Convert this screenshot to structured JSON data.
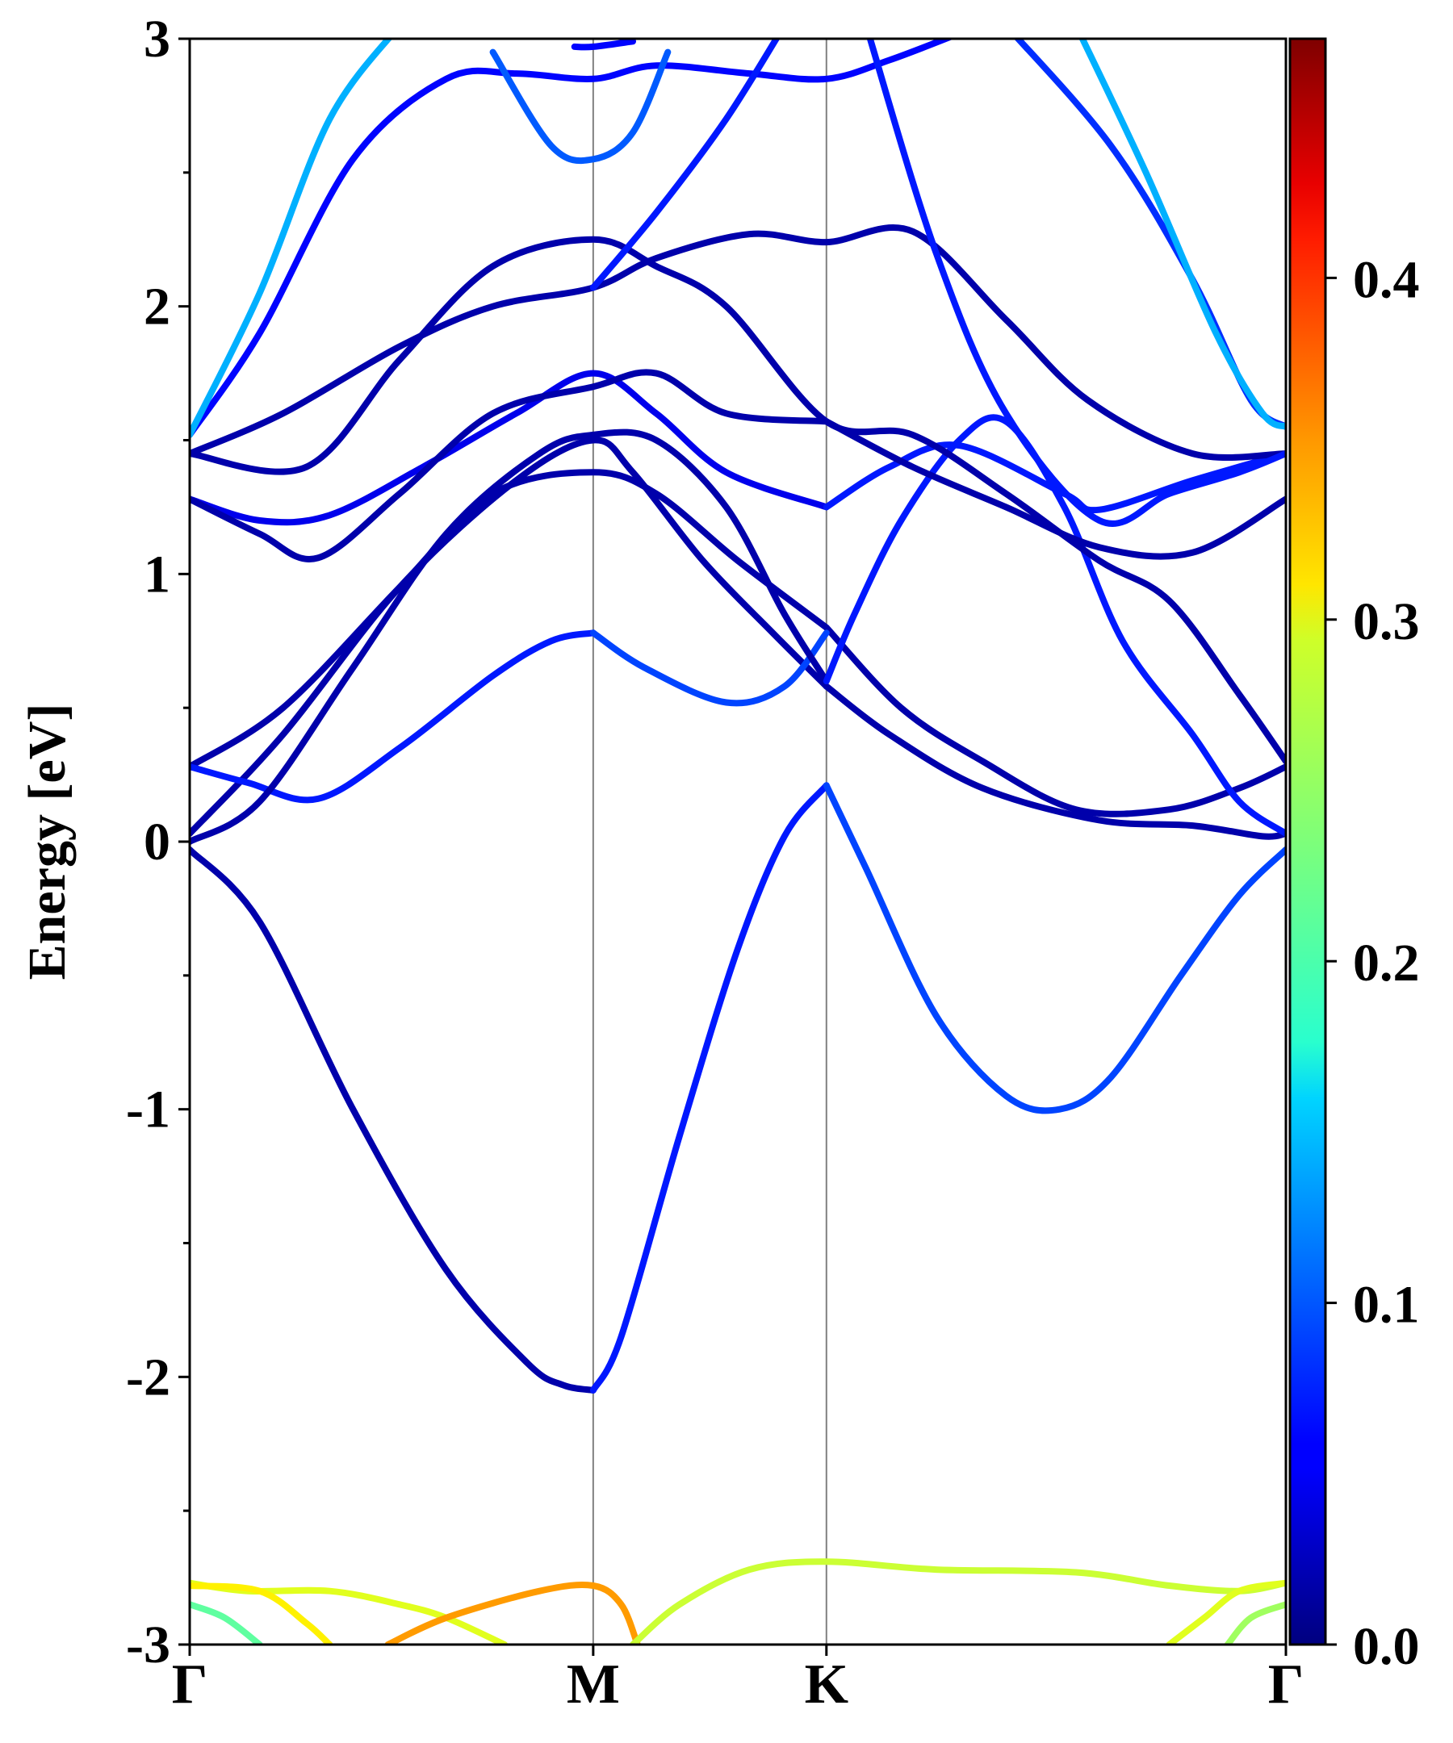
{
  "chart_data": {
    "type": "line",
    "title": "",
    "xlabel": "",
    "ylabel": "Energy [eV]",
    "ylim": [
      -3,
      3
    ],
    "xlim": [
      0,
      4.7
    ],
    "y_ticks": [
      "-3",
      "-2",
      "-1",
      "0",
      "1",
      "2",
      "3"
    ],
    "x_ticks": [
      {
        "label": "Γ",
        "value": 0
      },
      {
        "label": "M",
        "value": 1.73
      },
      {
        "label": "K",
        "value": 2.73
      },
      {
        "label": "Γ",
        "value": 4.7
      }
    ],
    "colorbar": {
      "colormap": "jet",
      "range": [
        0,
        0.47
      ],
      "ticks": [
        "0.0",
        "0.1",
        "0.2",
        "0.3",
        "0.4"
      ]
    },
    "series": [
      {
        "color_value": 0.02,
        "points": [
          [
            0,
            -0.03
          ],
          [
            0.3,
            -0.3
          ],
          [
            0.7,
            -1.0
          ],
          [
            1.1,
            -1.6
          ],
          [
            1.45,
            -1.95
          ],
          [
            1.6,
            -2.03
          ],
          [
            1.73,
            -2.05
          ]
        ]
      },
      {
        "color_value": 0.07,
        "points": [
          [
            1.73,
            -2.05
          ],
          [
            1.85,
            -1.85
          ],
          [
            2.1,
            -1.1
          ],
          [
            2.35,
            -0.4
          ],
          [
            2.55,
            0.02
          ],
          [
            2.73,
            0.21
          ]
        ]
      },
      {
        "color_value": 0.09,
        "points": [
          [
            2.73,
            0.21
          ],
          [
            2.9,
            -0.1
          ],
          [
            3.2,
            -0.65
          ],
          [
            3.5,
            -0.95
          ],
          [
            3.73,
            -1.0
          ],
          [
            3.95,
            -0.88
          ],
          [
            4.25,
            -0.5
          ],
          [
            4.5,
            -0.2
          ],
          [
            4.7,
            -0.03
          ]
        ]
      },
      {
        "color_value": 0.02,
        "points": [
          [
            0,
            0.03
          ],
          [
            0.4,
            0.4
          ],
          [
            0.9,
            0.95
          ],
          [
            1.4,
            1.35
          ],
          [
            1.73,
            1.5
          ],
          [
            1.9,
            1.38
          ],
          [
            2.2,
            1.05
          ],
          [
            2.5,
            0.78
          ],
          [
            2.73,
            0.58
          ]
        ]
      },
      {
        "color_value": 0.02,
        "points": [
          [
            2.73,
            0.58
          ],
          [
            3.0,
            0.4
          ],
          [
            3.4,
            0.2
          ],
          [
            3.9,
            0.08
          ],
          [
            4.3,
            0.06
          ],
          [
            4.6,
            0.02
          ],
          [
            4.7,
            0.03
          ]
        ]
      },
      {
        "color_value": 0.02,
        "points": [
          [
            0,
            0.28
          ],
          [
            0.4,
            0.5
          ],
          [
            0.9,
            0.95
          ],
          [
            1.3,
            1.3
          ],
          [
            1.73,
            1.38
          ],
          [
            2.0,
            1.3
          ],
          [
            2.35,
            1.05
          ],
          [
            2.73,
            0.8
          ]
        ]
      },
      {
        "color_value": 0.02,
        "points": [
          [
            2.73,
            0.8
          ],
          [
            3.05,
            0.5
          ],
          [
            3.4,
            0.3
          ],
          [
            3.8,
            0.12
          ],
          [
            4.2,
            0.12
          ],
          [
            4.5,
            0.2
          ],
          [
            4.7,
            0.28
          ]
        ]
      },
      {
        "color_value": 0.07,
        "points": [
          [
            0,
            0.28
          ],
          [
            0.25,
            0.22
          ],
          [
            0.55,
            0.16
          ],
          [
            0.9,
            0.35
          ],
          [
            1.3,
            0.62
          ],
          [
            1.55,
            0.75
          ],
          [
            1.73,
            0.78
          ]
        ]
      },
      {
        "color_value": 0.09,
        "points": [
          [
            1.73,
            0.78
          ],
          [
            1.95,
            0.65
          ],
          [
            2.3,
            0.52
          ],
          [
            2.55,
            0.58
          ],
          [
            2.73,
            0.78
          ]
        ]
      },
      {
        "color_value": 0.02,
        "points": [
          [
            0,
            0.0
          ],
          [
            0.3,
            0.15
          ],
          [
            0.7,
            0.65
          ],
          [
            1.1,
            1.15
          ],
          [
            1.5,
            1.45
          ],
          [
            1.73,
            1.52
          ],
          [
            2.0,
            1.5
          ],
          [
            2.3,
            1.25
          ],
          [
            2.55,
            0.85
          ],
          [
            2.73,
            0.6
          ]
        ]
      },
      {
        "color_value": 0.07,
        "points": [
          [
            2.73,
            0.6
          ],
          [
            2.85,
            0.85
          ],
          [
            3.05,
            1.2
          ],
          [
            3.3,
            1.5
          ],
          [
            3.5,
            1.57
          ],
          [
            3.75,
            1.25
          ],
          [
            4.0,
            0.75
          ],
          [
            4.3,
            0.4
          ],
          [
            4.5,
            0.15
          ],
          [
            4.7,
            0.03
          ]
        ]
      },
      {
        "color_value": 0.05,
        "points": [
          [
            0,
            1.28
          ],
          [
            0.3,
            1.2
          ],
          [
            0.6,
            1.22
          ],
          [
            1.0,
            1.4
          ],
          [
            1.4,
            1.6
          ],
          [
            1.73,
            1.75
          ],
          [
            2.0,
            1.6
          ],
          [
            2.3,
            1.38
          ],
          [
            2.73,
            1.25
          ]
        ]
      },
      {
        "color_value": 0.07,
        "points": [
          [
            2.73,
            1.25
          ],
          [
            3.0,
            1.4
          ],
          [
            3.3,
            1.48
          ],
          [
            3.75,
            1.3
          ],
          [
            3.9,
            1.24
          ],
          [
            4.3,
            1.35
          ],
          [
            4.7,
            1.45
          ]
        ]
      },
      {
        "color_value": 0.02,
        "points": [
          [
            0,
            1.28
          ],
          [
            0.3,
            1.15
          ],
          [
            0.55,
            1.06
          ],
          [
            0.9,
            1.3
          ],
          [
            1.3,
            1.6
          ],
          [
            1.73,
            1.7
          ],
          [
            2.0,
            1.75
          ],
          [
            2.3,
            1.6
          ],
          [
            2.73,
            1.57
          ]
        ]
      },
      {
        "color_value": 0.02,
        "points": [
          [
            2.73,
            1.57
          ],
          [
            3.1,
            1.4
          ],
          [
            3.5,
            1.25
          ],
          [
            3.9,
            1.1
          ],
          [
            4.3,
            1.08
          ],
          [
            4.7,
            1.28
          ]
        ]
      },
      {
        "color_value": 0.02,
        "points": [
          [
            0,
            1.45
          ],
          [
            0.4,
            1.6
          ],
          [
            0.9,
            1.85
          ],
          [
            1.3,
            2.0
          ],
          [
            1.73,
            2.07
          ],
          [
            2.0,
            2.18
          ],
          [
            2.4,
            2.27
          ],
          [
            2.73,
            2.24
          ],
          [
            3.1,
            2.28
          ],
          [
            3.5,
            1.95
          ],
          [
            3.85,
            1.65
          ],
          [
            4.3,
            1.45
          ],
          [
            4.7,
            1.45
          ]
        ]
      },
      {
        "color_value": 0.02,
        "points": [
          [
            0,
            1.45
          ],
          [
            0.5,
            1.4
          ],
          [
            0.9,
            1.8
          ],
          [
            1.3,
            2.15
          ],
          [
            1.73,
            2.25
          ],
          [
            2.0,
            2.15
          ],
          [
            2.3,
            2.0
          ],
          [
            2.73,
            1.57
          ],
          [
            3.1,
            1.52
          ],
          [
            3.5,
            1.3
          ],
          [
            3.9,
            1.05
          ],
          [
            4.2,
            0.9
          ],
          [
            4.5,
            0.55
          ],
          [
            4.7,
            0.3
          ]
        ]
      },
      {
        "color_value": 0.06,
        "points": [
          [
            0,
            1.52
          ],
          [
            0.3,
            1.9
          ],
          [
            0.7,
            2.55
          ],
          [
            1.1,
            2.85
          ],
          [
            1.4,
            2.87
          ],
          [
            1.73,
            2.85
          ],
          [
            2.0,
            2.9
          ],
          [
            2.4,
            2.87
          ],
          [
            2.73,
            2.85
          ],
          [
            3.0,
            2.92
          ],
          [
            3.3,
            3.02
          ]
        ]
      },
      {
        "color_value": 0.14,
        "points": [
          [
            0,
            1.52
          ],
          [
            0.3,
            2.05
          ],
          [
            0.6,
            2.7
          ],
          [
            0.9,
            3.05
          ]
        ]
      },
      {
        "color_value": 0.1,
        "points": [
          [
            1.3,
            2.95
          ],
          [
            1.55,
            2.6
          ],
          [
            1.73,
            2.55
          ],
          [
            1.9,
            2.65
          ],
          [
            2.05,
            2.95
          ]
        ]
      },
      {
        "color_value": 0.06,
        "points": [
          [
            1.65,
            2.97
          ],
          [
            1.73,
            2.97
          ],
          [
            1.9,
            2.99
          ]
        ]
      },
      {
        "color_value": 0.07,
        "points": [
          [
            1.73,
            2.07
          ],
          [
            2.0,
            2.35
          ],
          [
            2.3,
            2.7
          ],
          [
            2.55,
            3.05
          ]
        ]
      },
      {
        "color_value": 0.07,
        "points": [
          [
            2.9,
            3.05
          ],
          [
            3.2,
            2.2
          ],
          [
            3.5,
            1.6
          ],
          [
            3.9,
            1.2
          ],
          [
            4.2,
            1.3
          ],
          [
            4.5,
            1.38
          ],
          [
            4.7,
            1.45
          ]
        ]
      },
      {
        "color_value": 0.08,
        "points": [
          [
            3.5,
            3.05
          ],
          [
            3.95,
            2.6
          ],
          [
            4.3,
            2.1
          ],
          [
            4.55,
            1.65
          ],
          [
            4.7,
            1.55
          ]
        ]
      },
      {
        "color_value": 0.14,
        "points": [
          [
            3.8,
            3.05
          ],
          [
            4.1,
            2.5
          ],
          [
            4.4,
            1.9
          ],
          [
            4.6,
            1.6
          ],
          [
            4.7,
            1.55
          ]
        ]
      },
      {
        "color_value": 0.28,
        "points": [
          [
            0,
            -2.77
          ],
          [
            0.25,
            -2.8
          ],
          [
            0.6,
            -2.8
          ],
          [
            0.9,
            -2.85
          ],
          [
            1.1,
            -2.9
          ],
          [
            1.35,
            -3.0
          ]
        ]
      },
      {
        "color_value": 0.3,
        "points": [
          [
            0,
            -2.78
          ],
          [
            0.3,
            -2.8
          ],
          [
            0.5,
            -2.92
          ],
          [
            0.6,
            -3.0
          ]
        ]
      },
      {
        "color_value": 0.22,
        "points": [
          [
            0,
            -2.85
          ],
          [
            0.15,
            -2.9
          ],
          [
            0.3,
            -3.0
          ]
        ]
      },
      {
        "color_value": 0.34,
        "points": [
          [
            0.85,
            -3.0
          ],
          [
            1.1,
            -2.9
          ],
          [
            1.5,
            -2.8
          ],
          [
            1.73,
            -2.78
          ],
          [
            1.85,
            -2.85
          ],
          [
            1.92,
            -3.0
          ]
        ]
      },
      {
        "color_value": 0.27,
        "points": [
          [
            1.9,
            -3.0
          ],
          [
            2.1,
            -2.85
          ],
          [
            2.4,
            -2.72
          ],
          [
            2.73,
            -2.69
          ],
          [
            3.2,
            -2.72
          ],
          [
            3.8,
            -2.73
          ],
          [
            4.2,
            -2.78
          ],
          [
            4.5,
            -2.8
          ],
          [
            4.7,
            -2.77
          ]
        ]
      },
      {
        "color_value": 0.28,
        "points": [
          [
            4.2,
            -3.0
          ],
          [
            4.35,
            -2.9
          ],
          [
            4.5,
            -2.8
          ],
          [
            4.7,
            -2.77
          ]
        ]
      },
      {
        "color_value": 0.25,
        "points": [
          [
            4.45,
            -3.0
          ],
          [
            4.55,
            -2.9
          ],
          [
            4.7,
            -2.85
          ]
        ]
      }
    ]
  }
}
